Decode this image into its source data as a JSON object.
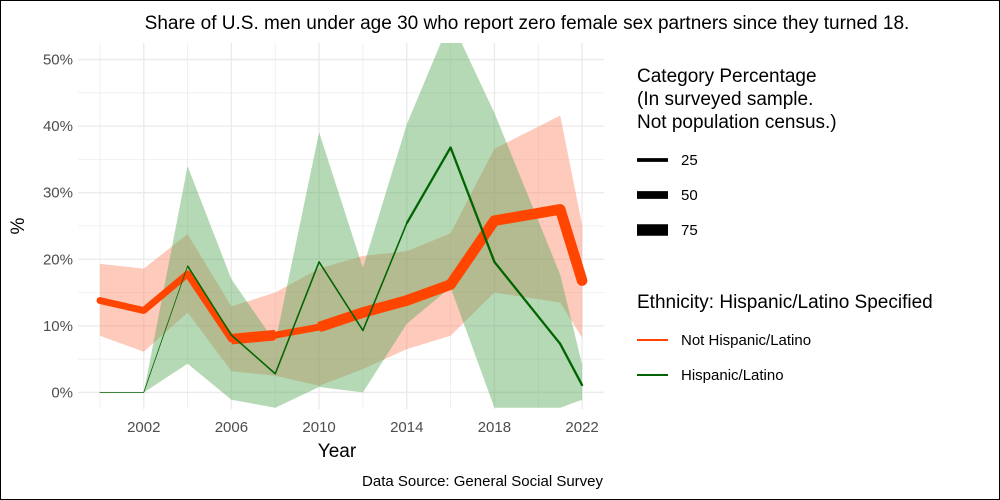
{
  "chart_data": {
    "type": "line",
    "title": "Share of U.S. men under age 30 who report zero female sex partners since they turned 18.",
    "xlabel": "Year",
    "ylabel": "%",
    "caption": "Data Source: General Social Survey",
    "xlim": [
      1999,
      2023
    ],
    "ylim": [
      -2.5,
      52.5
    ],
    "x_ticks": [
      2002,
      2006,
      2010,
      2014,
      2018,
      2022
    ],
    "x_tick_labels": [
      "2002",
      "2006",
      "2010",
      "2014",
      "2018",
      "2022"
    ],
    "y_ticks": [
      0,
      10,
      20,
      30,
      40,
      50
    ],
    "y_tick_labels": [
      "0%",
      "10%",
      "20%",
      "30%",
      "40%",
      "50%"
    ],
    "grid": true,
    "legend_position": "right",
    "series": [
      {
        "name": "Not Hispanic/Latino",
        "color": "#ff4500",
        "band_color": "#fa8a6a",
        "x": [
          2000,
          2002,
          2004,
          2006,
          2008,
          2010,
          2012,
          2014,
          2016,
          2018,
          2021,
          2022
        ],
        "y": [
          13.8,
          12.3,
          17.8,
          8.0,
          8.6,
          9.8,
          12.0,
          13.8,
          16.2,
          25.8,
          27.5,
          16.8
        ],
        "lower": [
          8.5,
          6.1,
          12.0,
          3.2,
          2.5,
          1.0,
          3.5,
          6.5,
          8.5,
          15.0,
          13.5,
          8.2
        ],
        "upper": [
          19.3,
          18.6,
          23.8,
          12.9,
          15.0,
          18.6,
          20.5,
          21.2,
          23.9,
          36.6,
          41.6,
          25.2
        ],
        "count": [
          50,
          50,
          50,
          75,
          50,
          75,
          75,
          75,
          75,
          75,
          75,
          75
        ]
      },
      {
        "name": "Hispanic/Latino",
        "color": "#006400",
        "band_color": "#5aa85a",
        "x": [
          2000,
          2002,
          2004,
          2006,
          2008,
          2010,
          2012,
          2014,
          2016,
          2018,
          2021,
          2022
        ],
        "y": [
          0,
          0,
          19.0,
          8.6,
          2.8,
          19.6,
          9.3,
          25.4,
          36.8,
          19.6,
          7.3,
          1.1
        ],
        "lower": [
          0,
          0,
          4.3,
          -1.1,
          -2.3,
          0.8,
          0,
          10.3,
          15.8,
          -2.3,
          -2.3,
          -1.1
        ],
        "upper": [
          0,
          0,
          34.0,
          17.0,
          7.5,
          39.1,
          18.7,
          40.3,
          56.0,
          42.0,
          17.7,
          4.2
        ],
        "count": [
          10,
          10,
          15,
          15,
          15,
          15,
          15,
          20,
          20,
          20,
          20,
          20
        ]
      }
    ],
    "legend": {
      "size_title": [
        "Category Percentage",
        "(In surveyed sample.",
        "Not population census.)"
      ],
      "size_items": [
        {
          "label": "25",
          "value": 25
        },
        {
          "label": "50",
          "value": 50
        },
        {
          "label": "75",
          "value": 75
        }
      ],
      "color_title": "Ethnicity: Hispanic/Latino Specified",
      "color_items": [
        {
          "label": "Not Hispanic/Latino",
          "color": "#ff4500"
        },
        {
          "label": "Hispanic/Latino",
          "color": "#006400"
        }
      ]
    }
  }
}
